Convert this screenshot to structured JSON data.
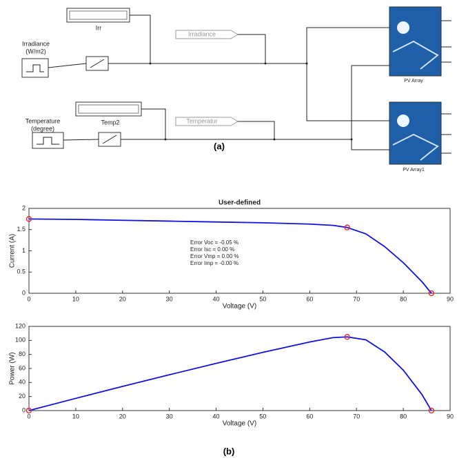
{
  "diagram": {
    "irr_display": "Irr",
    "irradiance_source": [
      "Irradiance",
      "(W/m2)"
    ],
    "irradiance_goto": "Irradiance",
    "temp_display": "Temp2",
    "temperature_source": [
      "Temperature",
      "(degree)"
    ],
    "temperature_goto": "Temperatur",
    "pv_array": "PV Array",
    "pv_array1": "PV Array1"
  },
  "figure_captions": [
    "(a)",
    "(b)"
  ],
  "chart_data": [
    {
      "type": "line",
      "title": "User-defined",
      "x_label": "Voltage (V)",
      "y_label": "Current (A)",
      "annotations": [
        "Error Voc = -0.05  %",
        "Error Isc = 0.00  %",
        "Error Vmp = 0.00  %",
        "Error Imp = -0.00  %"
      ],
      "xlim": [
        0,
        90
      ],
      "xticks": [
        0,
        10,
        20,
        30,
        40,
        50,
        60,
        70,
        80,
        90
      ],
      "ylim": [
        0,
        2
      ],
      "yticks": [
        0,
        0.5,
        1,
        1.5,
        2
      ],
      "grid": false,
      "series": [
        {
          "color": "#1010e0",
          "marker": false,
          "x": [
            0,
            10,
            20,
            30,
            40,
            50,
            60,
            65,
            68,
            72,
            76,
            80,
            84,
            86
          ],
          "values": [
            1.75,
            1.74,
            1.72,
            1.7,
            1.68,
            1.66,
            1.63,
            1.6,
            1.55,
            1.4,
            1.1,
            0.72,
            0.27,
            0
          ]
        },
        {
          "color": "#e03040",
          "marker": true,
          "x": [
            0,
            68,
            86
          ],
          "values": [
            1.75,
            1.55,
            0
          ]
        }
      ]
    },
    {
      "type": "line",
      "x_label": "Voltage (V)",
      "y_label": "Power (W)",
      "xlim": [
        0,
        90
      ],
      "xticks": [
        0,
        10,
        20,
        30,
        40,
        50,
        60,
        70,
        80,
        90
      ],
      "ylim": [
        0,
        120
      ],
      "yticks": [
        0,
        20,
        40,
        60,
        80,
        100,
        120
      ],
      "grid": false,
      "series": [
        {
          "color": "#1010e0",
          "marker": false,
          "x": [
            0,
            10,
            20,
            30,
            40,
            50,
            60,
            65,
            68,
            72,
            76,
            80,
            84,
            86
          ],
          "values": [
            0,
            17.4,
            34.4,
            51,
            67.2,
            83,
            97.8,
            104,
            105,
            100.8,
            83.6,
            57.6,
            22.7,
            0
          ]
        },
        {
          "color": "#e03040",
          "marker": true,
          "x": [
            0,
            68,
            86
          ],
          "values": [
            0,
            105,
            0
          ]
        }
      ]
    }
  ]
}
